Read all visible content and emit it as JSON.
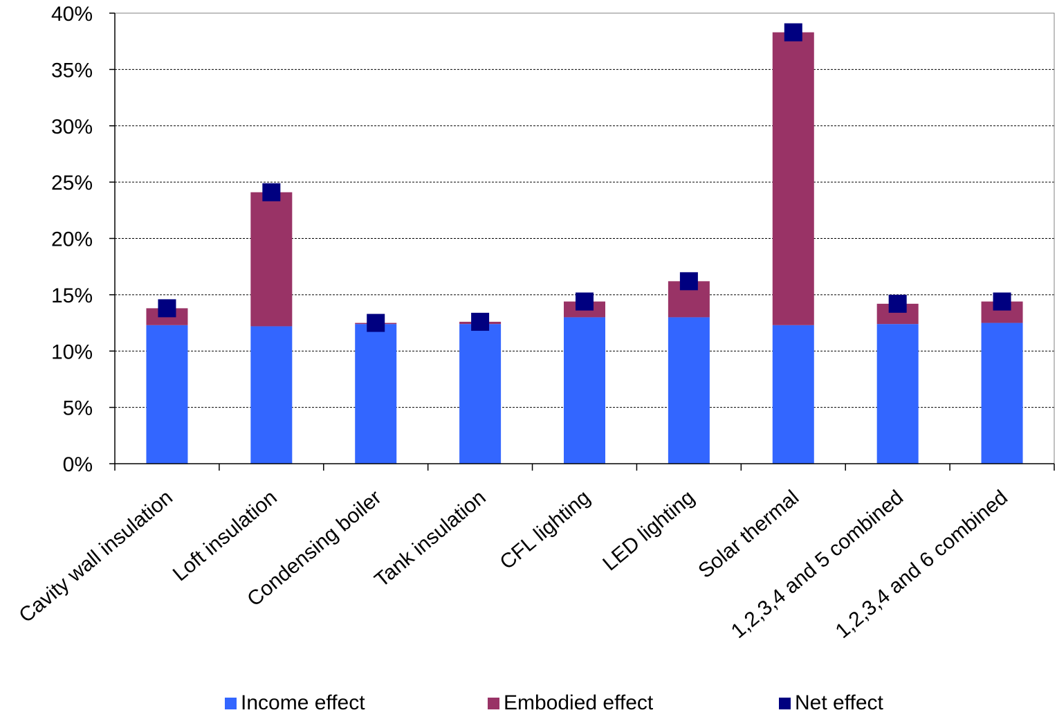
{
  "chart_data": {
    "type": "bar",
    "stacked": true,
    "categories": [
      "Cavity wall insulation",
      "Loft insulation",
      "Condensing boiler",
      "Tank insulation",
      "CFL lighting",
      "LED lighting",
      "Solar thermal",
      "1,2,3,4 and 5 combined",
      "1,2,3,4 and 6 combined"
    ],
    "series": [
      {
        "name": "Income effect",
        "kind": "bar",
        "color": "#3366ff",
        "values": [
          12.3,
          12.2,
          12.4,
          12.4,
          13.0,
          13.0,
          12.3,
          12.4,
          12.5
        ]
      },
      {
        "name": "Embodied effect",
        "kind": "bar",
        "color": "#993366",
        "values": [
          1.5,
          11.9,
          0.1,
          0.2,
          1.4,
          3.2,
          26.0,
          1.8,
          1.9
        ]
      },
      {
        "name": "Net effect",
        "kind": "marker",
        "color": "#000080",
        "values": [
          13.8,
          24.1,
          12.5,
          12.6,
          14.4,
          16.2,
          38.3,
          14.2,
          14.4
        ]
      }
    ],
    "yticks": [
      "0%",
      "5%",
      "10%",
      "15%",
      "20%",
      "25%",
      "30%",
      "35%",
      "40%"
    ],
    "ylim": [
      0,
      40
    ],
    "grid": true,
    "legend_position": "bottom"
  }
}
